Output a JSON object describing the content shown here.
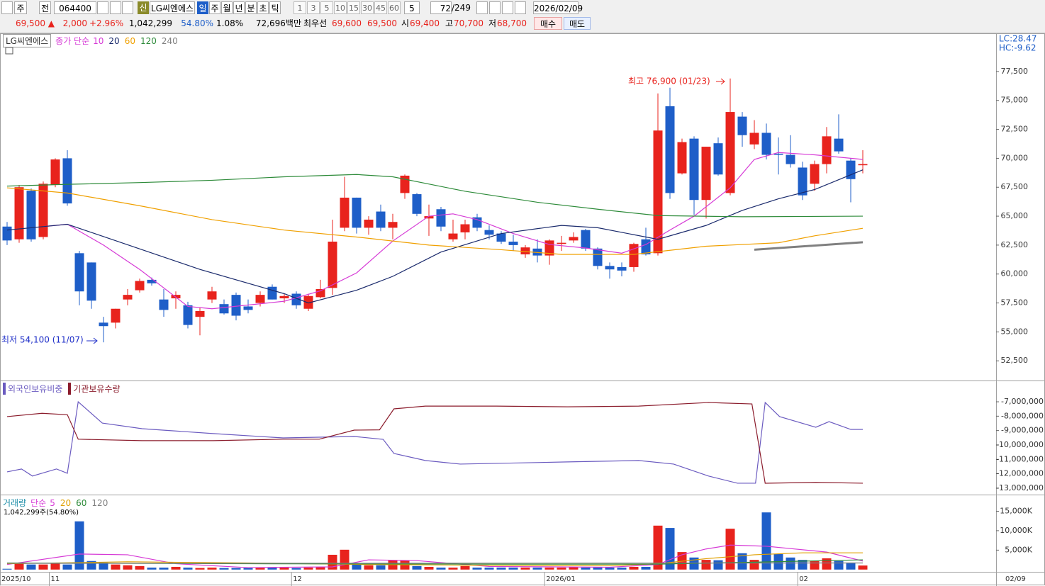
{
  "toolbar": {
    "period_unit": "주",
    "prev": "전",
    "code": "064400",
    "badge": "신",
    "name": "LG씨엔에스",
    "periods": [
      "일",
      "주",
      "월",
      "년",
      "분",
      "초",
      "틱"
    ],
    "intervals": [
      "1",
      "3",
      "5",
      "10",
      "15",
      "30",
      "45",
      "60"
    ],
    "count_unit": "5",
    "shown": "72",
    "total": "/249",
    "date": "2026/02/09"
  },
  "quote": {
    "price": "69,500 ▲",
    "change": "2,000",
    "change_pct": "+2.96%",
    "volume": "1,042,299",
    "volume_ratio": "54.80%",
    "turnover": "1.08%",
    "amount": "72,696백만",
    "best_label": "최우선",
    "ask": "69,600",
    "bid": "69,500",
    "open_label": "시",
    "open": "69,400",
    "high_label": "고",
    "high": "70,700",
    "low_label": "저",
    "low": "68,700",
    "buy": "매수",
    "sell": "매도"
  },
  "chart_data": [
    {
      "type": "candlestick",
      "title": "LG씨엔에스",
      "legend_label": "종가 단순",
      "corner": [
        "LC:28.47",
        "HC:-9.62"
      ],
      "up_color": "#e8231d",
      "down_color": "#1e5ec8",
      "open": [
        64100,
        63000,
        67200,
        63200,
        67700,
        70000,
        61800,
        61000,
        55800,
        55800,
        57800,
        58600,
        59500,
        57800,
        57900,
        57300,
        56300,
        57800,
        57400,
        58200,
        57200,
        57500,
        58900,
        57900,
        58300,
        57000,
        58000,
        58800,
        64000,
        66600,
        64000,
        65400,
        64000,
        67000,
        66900,
        64800,
        65600,
        63000,
        63600,
        64900,
        63800,
        63500,
        62800,
        61700,
        62200,
        61600,
        62600,
        62900,
        63800,
        62200,
        60700,
        60600,
        60600,
        63000,
        61800,
        74500,
        68700,
        71700,
        66400,
        71300,
        67000,
        73600,
        71200,
        72200,
        70400,
        70300,
        69200,
        67800,
        69500,
        71700,
        69800,
        69400
      ],
      "high": [
        64500,
        67700,
        67400,
        68000,
        70000,
        70700,
        62000,
        61000,
        56300,
        57000,
        58700,
        59600,
        59700,
        58700,
        58500,
        57600,
        57100,
        58900,
        57800,
        58400,
        57800,
        58500,
        59100,
        58300,
        58500,
        58300,
        59500,
        64700,
        68400,
        66600,
        65000,
        66000,
        65200,
        68600,
        67000,
        66000,
        65800,
        64700,
        64700,
        65200,
        64200,
        63700,
        63400,
        62500,
        63000,
        63000,
        63300,
        63600,
        63900,
        62300,
        61000,
        61000,
        62700,
        64000,
        75600,
        76100,
        71700,
        71900,
        71000,
        71800,
        76900,
        74000,
        73300,
        73000,
        71800,
        72000,
        69700,
        69800,
        72700,
        73800,
        70000,
        70700
      ],
      "low": [
        62500,
        62700,
        62800,
        63000,
        67500,
        65900,
        57300,
        57000,
        54100,
        55300,
        57300,
        58400,
        59000,
        56300,
        57000,
        55300,
        54700,
        57500,
        56500,
        56000,
        56600,
        57200,
        57800,
        57500,
        57000,
        56800,
        57900,
        58200,
        63700,
        63500,
        63400,
        63700,
        63000,
        66500,
        65000,
        63300,
        63700,
        62800,
        63000,
        63700,
        63000,
        62600,
        62000,
        61400,
        61000,
        60800,
        62000,
        62700,
        62000,
        60400,
        59600,
        59800,
        60200,
        61600,
        61600,
        66500,
        68600,
        65100,
        64800,
        68500,
        66800,
        71000,
        70800,
        69900,
        68600,
        69200,
        66400,
        67200,
        68700,
        70400,
        66200,
        68700
      ],
      "close": [
        62900,
        67500,
        63000,
        67800,
        69900,
        66100,
        58500,
        57700,
        55500,
        57000,
        58200,
        59400,
        59200,
        56900,
        58200,
        55600,
        56800,
        58500,
        56600,
        56400,
        56900,
        58200,
        57800,
        58100,
        57300,
        58100,
        58700,
        62800,
        66600,
        64000,
        64700,
        64000,
        64500,
        68500,
        65200,
        65000,
        64100,
        63500,
        64300,
        64000,
        63400,
        62800,
        62500,
        62300,
        61600,
        62900,
        62700,
        63200,
        62200,
        60700,
        60400,
        60300,
        62600,
        61700,
        72400,
        67000,
        71400,
        66400,
        71000,
        68600,
        74000,
        72000,
        72200,
        70300,
        70300,
        69500,
        66800,
        69500,
        71900,
        70600,
        68200,
        69500
      ],
      "series": [
        {
          "name": "10",
          "color": "#d63ad6",
          "x": [
            3,
            5,
            8,
            11,
            15,
            17,
            23,
            26,
            29,
            32,
            35,
            37,
            39,
            42,
            45,
            48,
            51,
            53,
            55,
            57,
            60,
            62,
            64,
            67,
            71
          ],
          "values": [
            64100,
            64300,
            62500,
            60400,
            57200,
            57000,
            57650,
            58550,
            60100,
            62850,
            65000,
            65200,
            64700,
            63500,
            62550,
            62250,
            61800,
            62550,
            63800,
            65000,
            67450,
            69900,
            70500,
            70300,
            69900
          ]
        },
        {
          "name": "20",
          "color": "#1a2a6c",
          "x": [
            0,
            5,
            16,
            23,
            25,
            29,
            32,
            36,
            41,
            46,
            49,
            54,
            58,
            61,
            64,
            67,
            71
          ],
          "values": [
            63800,
            64300,
            60400,
            58300,
            57500,
            58600,
            59800,
            61900,
            63500,
            64200,
            64000,
            63000,
            64200,
            65500,
            66500,
            67300,
            69000
          ]
        },
        {
          "name": "60",
          "color": "#f0a000",
          "x": [
            0,
            5,
            11,
            17,
            23,
            29,
            35,
            41,
            46,
            52,
            58,
            64,
            67,
            71
          ],
          "values": [
            67450,
            67000,
            65900,
            64700,
            63800,
            63200,
            62500,
            62100,
            61700,
            61700,
            62400,
            62700,
            63300,
            63950
          ]
        },
        {
          "name": "120",
          "color": "#2e8b3a",
          "x": [
            0,
            5,
            11,
            17,
            23,
            29,
            32,
            38,
            44,
            49,
            54,
            61,
            71
          ],
          "values": [
            67600,
            67750,
            67900,
            68100,
            68400,
            68600,
            68400,
            67150,
            66200,
            65600,
            65050,
            64950,
            65000
          ]
        },
        {
          "name": "240",
          "color": "#808080",
          "x": [
            62,
            71
          ],
          "values": [
            62100,
            62750
          ]
        }
      ],
      "annotations": [
        "최고 76,900 (01/23)",
        "최저 54,100 (11/07)"
      ],
      "ylim": [
        50800,
        80800
      ],
      "yticks": [
        {
          "value": 77500,
          "label": "77,500"
        },
        {
          "value": 75000,
          "label": "75,000"
        },
        {
          "value": 72500,
          "label": "72,500"
        },
        {
          "value": 70000,
          "label": "70,000"
        },
        {
          "value": 67500,
          "label": "67,500"
        },
        {
          "value": 65000,
          "label": "65,000"
        },
        {
          "value": 62500,
          "label": "62,500"
        },
        {
          "value": 60000,
          "label": "60,000"
        },
        {
          "value": 57500,
          "label": "57,500"
        },
        {
          "value": 55000,
          "label": "55,000"
        },
        {
          "value": 52500,
          "label": "52,500"
        }
      ]
    },
    {
      "type": "line",
      "series": [
        {
          "name": "외국인보유비중",
          "color": "#6b5bc0",
          "x": [
            0,
            1.2,
            2.1,
            4.1,
            5,
            5.9,
            7.9,
            11.2,
            17.1,
            22.9,
            28.8,
            31.2,
            32.1,
            34.7,
            37.6,
            46.5,
            52.4,
            55.3,
            58.2,
            60.6,
            62.1,
            62.9,
            64.1,
            67.1,
            68.2,
            70,
            71
          ],
          "values": [
            -11870000,
            -11670000,
            -12160000,
            -11670000,
            -11970000,
            -7000000,
            -8480000,
            -8870000,
            -9210000,
            -9510000,
            -9410000,
            -9610000,
            -10590000,
            -11080000,
            -11330000,
            -11180000,
            -11080000,
            -11330000,
            -12160000,
            -12660000,
            -12660000,
            -7050000,
            -8030000,
            -8770000,
            -8380000,
            -8920000,
            -8920000
          ]
        },
        {
          "name": "기관보유수량",
          "color": "#8b1c2c",
          "x": [
            0,
            2.9,
            5,
            5.9,
            11.2,
            17.1,
            22.9,
            25.9,
            28.8,
            30.9,
            32.1,
            34.7,
            40.6,
            46.5,
            52.4,
            58.2,
            61.8,
            62.9,
            67.1,
            71
          ],
          "values": [
            -8030000,
            -7800000,
            -7900000,
            -9600000,
            -9700000,
            -9700000,
            -9600000,
            -9600000,
            -8970000,
            -8950000,
            -7490000,
            -7300000,
            -7300000,
            -7350000,
            -7300000,
            -7050000,
            -7150000,
            -12660000,
            -12600000,
            -12660000
          ]
        }
      ],
      "ylim": [
        -13450000,
        -5570000
      ],
      "yticks": [
        {
          "value": -7000000,
          "label": "-7,000,000"
        },
        {
          "value": -8000000,
          "label": "-8,000,000"
        },
        {
          "value": -9000000,
          "label": "-9,000,000"
        },
        {
          "value": -10000000,
          "label": "-10,000,000"
        },
        {
          "value": -11000000,
          "label": "-11,000,000"
        },
        {
          "value": -12000000,
          "label": "-12,000,000"
        },
        {
          "value": -13000000,
          "label": "-13,000,000"
        }
      ]
    },
    {
      "type": "bar",
      "title": "거래량",
      "legend_label": "단순",
      "subtitle": "1,042,299주(54.80%)",
      "values": [
        200,
        1600,
        1300,
        1300,
        1600,
        1300,
        12400,
        2200,
        1800,
        1300,
        1100,
        900,
        500,
        500,
        700,
        500,
        400,
        500,
        400,
        400,
        400,
        400,
        500,
        500,
        400,
        500,
        700,
        3800,
        5100,
        1300,
        1100,
        1100,
        2400,
        2400,
        900,
        700,
        500,
        500,
        900,
        500,
        500,
        500,
        500,
        500,
        500,
        500,
        500,
        700,
        500,
        500,
        500,
        500,
        700,
        700,
        11300,
        10700,
        4500,
        3100,
        2500,
        2400,
        10500,
        4200,
        2500,
        14700,
        4000,
        3100,
        2500,
        2200,
        2900,
        2200,
        1800,
        1042
      ],
      "series": [
        {
          "name": "5",
          "color": "#d63ad6",
          "x": [
            0,
            6,
            10,
            14,
            20,
            27,
            30,
            34,
            40,
            50,
            54,
            56,
            58,
            60,
            63,
            65,
            68,
            71
          ],
          "values": [
            1300,
            4000,
            3800,
            1500,
            500,
            700,
            2500,
            2300,
            800,
            600,
            1300,
            3800,
            5300,
            6300,
            6000,
            5400,
            4500,
            2200
          ]
        },
        {
          "name": "20",
          "color": "#e0a000",
          "x": [
            0,
            10,
            20,
            30,
            40,
            50,
            54,
            58,
            62,
            66,
            71
          ],
          "values": [
            1500,
            2000,
            1700,
            1300,
            1100,
            1000,
            1500,
            2800,
            3800,
            4300,
            4300
          ]
        },
        {
          "name": "60",
          "color": "#2e8b3a",
          "x": [
            0,
            20,
            40,
            54,
            62,
            71
          ],
          "values": [
            1700,
            1500,
            1400,
            1400,
            1900,
            2500
          ]
        },
        {
          "name": "120",
          "color": "#808080",
          "x": [
            0,
            71
          ],
          "values": [
            1600,
            1700
          ]
        }
      ],
      "ylim": [
        -400,
        19100
      ],
      "yticks": [
        {
          "value": 15000,
          "label": "15,000K"
        },
        {
          "value": 10000,
          "label": "10,000K"
        },
        {
          "value": 5000,
          "label": "5,000K"
        }
      ]
    }
  ],
  "x_axis": {
    "labels": [
      {
        "value": -0.6,
        "label": "2025/10"
      },
      {
        "value": 3.5,
        "label": "11"
      },
      {
        "value": 23.6,
        "label": "12"
      },
      {
        "value": 44.6,
        "label": "2026/01"
      },
      {
        "value": 65.6,
        "label": "02"
      }
    ],
    "end_label": "02/09"
  }
}
